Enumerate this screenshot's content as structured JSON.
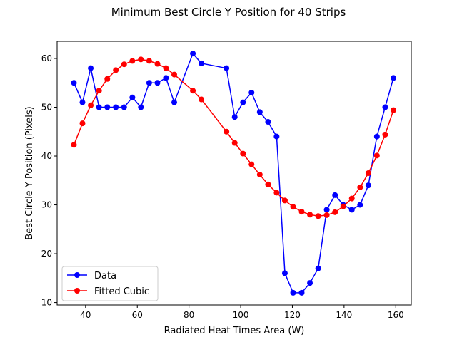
{
  "chart_data": {
    "type": "line",
    "title": "Minimum Best Circle Y Position for 40 Strips",
    "xlabel": "Radiated Heat Times Area (W)",
    "ylabel": "Best Circle Y Position (Pixels)",
    "xlim": [
      29,
      166
    ],
    "ylim": [
      9.5,
      63.5
    ],
    "xticks": [
      40,
      60,
      80,
      100,
      120,
      140,
      160
    ],
    "yticks": [
      10,
      20,
      30,
      40,
      50,
      60
    ],
    "grid": false,
    "legend_position": "lower-left",
    "series": [
      {
        "name": "Data",
        "color": "#0000ff",
        "x": [
          35.5,
          38.8,
          42.0,
          45.2,
          48.4,
          51.7,
          54.9,
          58.1,
          61.4,
          64.6,
          67.8,
          71.1,
          74.3,
          81.5,
          84.8,
          94.5,
          97.7,
          100.9,
          104.2,
          107.4,
          110.6,
          113.9,
          117.1,
          120.3,
          123.6,
          126.8,
          130.0,
          133.3,
          136.5,
          139.7,
          143.0,
          146.2,
          149.4,
          152.7,
          155.9,
          159.1
        ],
        "y": [
          55,
          51,
          58,
          50,
          50,
          50,
          50,
          52,
          50,
          55,
          55,
          56,
          51,
          61,
          59,
          58,
          48,
          51,
          53,
          49,
          47,
          44,
          16,
          12,
          12,
          14,
          17,
          29,
          32,
          30,
          29,
          30,
          34,
          44,
          50,
          56
        ]
      },
      {
        "name": "Fitted Cubic",
        "color": "#ff0000",
        "x": [
          35.5,
          38.8,
          42.0,
          45.2,
          48.4,
          51.7,
          54.9,
          58.1,
          61.4,
          64.6,
          67.8,
          71.1,
          74.3,
          81.5,
          84.8,
          94.5,
          97.7,
          100.9,
          104.2,
          107.4,
          110.6,
          113.9,
          117.1,
          120.3,
          123.6,
          126.8,
          130.0,
          133.3,
          136.5,
          139.7,
          143.0,
          146.2,
          149.4,
          152.7,
          155.9,
          159.1
        ],
        "y": [
          42.3,
          46.7,
          50.4,
          53.4,
          55.8,
          57.6,
          58.8,
          59.5,
          59.8,
          59.5,
          58.9,
          58.0,
          56.7,
          53.4,
          51.6,
          45.0,
          42.7,
          40.5,
          38.3,
          36.2,
          34.2,
          32.5,
          30.9,
          29.6,
          28.6,
          28.0,
          27.7,
          27.9,
          28.5,
          29.7,
          31.3,
          33.6,
          36.5,
          40.1,
          44.4,
          49.4
        ]
      }
    ]
  }
}
